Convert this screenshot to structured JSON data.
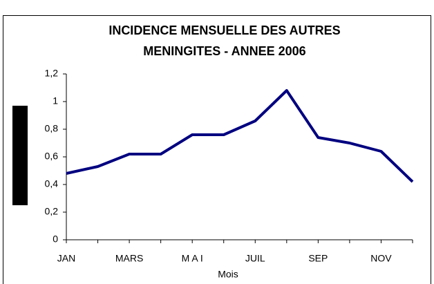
{
  "chart_data": {
    "type": "line",
    "title": [
      "INCIDENCE MENSUELLE DES AUTRES",
      "MENINGITES - ANNEE 2006"
    ],
    "x_label": "Mois",
    "categories": [
      "JAN",
      null,
      "MARS",
      null,
      "M A I",
      null,
      "JUIL",
      null,
      "SEP",
      null,
      "NOV",
      null
    ],
    "series": [
      {
        "color": "#000080",
        "values": [
          0.48,
          0.53,
          0.62,
          0.62,
          0.76,
          0.76,
          0.86,
          1.08,
          0.74,
          0.7,
          0.64,
          0.42
        ]
      }
    ],
    "ylim": [
      0,
      1.2
    ],
    "yticks": [
      0,
      {
        "value": 0.2,
        "label": "0,2"
      },
      {
        "value": 0.4,
        "label": "0,4"
      },
      {
        "value": 0.6,
        "label": "0,6"
      },
      {
        "value": 0.8,
        "label": "0,8"
      },
      1,
      {
        "value": 1.2,
        "label": "1,2"
      }
    ],
    "grid": false
  }
}
